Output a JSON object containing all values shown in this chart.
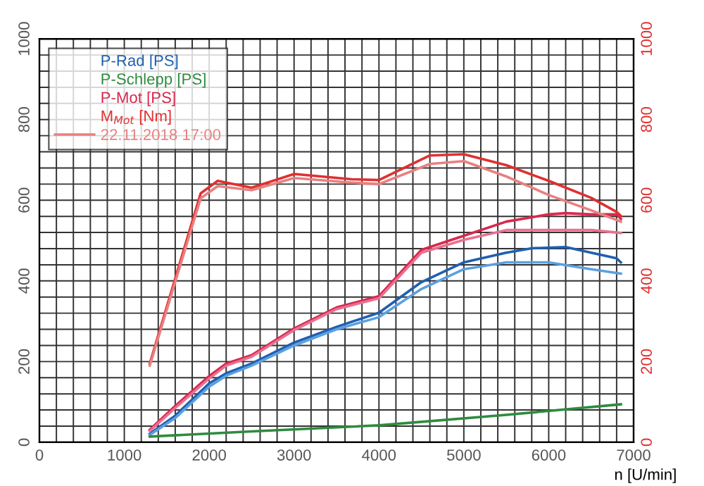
{
  "chart_data": {
    "type": "line",
    "xlabel": "n [U/min]",
    "legend": "top left",
    "grid": true,
    "xlim": [
      0,
      7000
    ],
    "ylim": [
      0,
      1000
    ],
    "y2lim": [
      0,
      1000
    ],
    "xticks": [
      0,
      {
        "value": 200,
        "label": null
      },
      {
        "value": 400,
        "label": null
      },
      {
        "value": 600,
        "label": null
      },
      {
        "value": 800,
        "label": null
      },
      1000,
      {
        "value": 1200,
        "label": null
      },
      {
        "value": 1400,
        "label": null
      },
      {
        "value": 1600,
        "label": null
      },
      {
        "value": 1800,
        "label": null
      },
      2000,
      {
        "value": 2200,
        "label": null
      },
      {
        "value": 2400,
        "label": null
      },
      {
        "value": 2600,
        "label": null
      },
      {
        "value": 2800,
        "label": null
      },
      3000,
      {
        "value": 3200,
        "label": null
      },
      {
        "value": 3400,
        "label": null
      },
      {
        "value": 3600,
        "label": null
      },
      {
        "value": 3800,
        "label": null
      },
      4000,
      {
        "value": 4200,
        "label": null
      },
      {
        "value": 4400,
        "label": null
      },
      {
        "value": 4600,
        "label": null
      },
      {
        "value": 4800,
        "label": null
      },
      5000,
      {
        "value": 5200,
        "label": null
      },
      {
        "value": 5400,
        "label": null
      },
      {
        "value": 5600,
        "label": null
      },
      {
        "value": 5800,
        "label": null
      },
      6000,
      {
        "value": 6200,
        "label": null
      },
      {
        "value": 6400,
        "label": null
      },
      {
        "value": 6600,
        "label": null
      },
      {
        "value": 6800,
        "label": null
      },
      7000
    ],
    "yticks": [
      0,
      {
        "value": 40,
        "label": null
      },
      {
        "value": 80,
        "label": null
      },
      {
        "value": 120,
        "label": null
      },
      {
        "value": 160,
        "label": null
      },
      200,
      {
        "value": 240,
        "label": null
      },
      {
        "value": 280,
        "label": null
      },
      {
        "value": 320,
        "label": null
      },
      {
        "value": 360,
        "label": null
      },
      400,
      {
        "value": 440,
        "label": null
      },
      {
        "value": 480,
        "label": null
      },
      {
        "value": 520,
        "label": null
      },
      {
        "value": 560,
        "label": null
      },
      600,
      {
        "value": 640,
        "label": null
      },
      {
        "value": 680,
        "label": null
      },
      {
        "value": 720,
        "label": null
      },
      {
        "value": 760,
        "label": null
      },
      800,
      {
        "value": 840,
        "label": null
      },
      {
        "value": 880,
        "label": null
      },
      {
        "value": 920,
        "label": null
      },
      {
        "value": 960,
        "label": null
      },
      1000
    ],
    "y2ticks": [
      0,
      200,
      400,
      600,
      800,
      1000
    ],
    "series": [
      {
        "name": "P-Rad [PS]",
        "color": "#1f5fb0",
        "axis": "y",
        "x": [
          1300,
          1600,
          2000,
          2200,
          2500,
          3000,
          3500,
          4000,
          4500,
          5000,
          5500,
          5800,
          6200,
          6500,
          6800,
          6850
        ],
        "values": [
          21,
          66,
          146,
          171,
          195,
          247,
          286,
          321,
          397,
          446,
          470,
          481,
          484,
          470,
          456,
          446
        ]
      },
      {
        "color": "#5aa0e0",
        "axis": "y",
        "x": [
          1300,
          1600,
          2000,
          2200,
          2500,
          3000,
          3500,
          4000,
          4500,
          5000,
          5500,
          6000,
          6500,
          6850
        ],
        "values": [
          18,
          60,
          138,
          165,
          190,
          240,
          280,
          310,
          380,
          429,
          446,
          446,
          429,
          418
        ]
      },
      {
        "name": "P-Schlepp [PS]",
        "color": "#2e8b3e",
        "axis": "y",
        "x": [
          1300,
          2500,
          4000,
          5500,
          6850
        ],
        "values": [
          14,
          27,
          42,
          68,
          94
        ]
      },
      {
        "name": "P-Mot [PS]",
        "color": "#d8284e",
        "axis": "y",
        "x": [
          1300,
          1600,
          2000,
          2200,
          2500,
          3000,
          3500,
          4000,
          4500,
          5000,
          5500,
          6000,
          6200,
          6500,
          6800,
          6850
        ],
        "values": [
          31,
          90,
          164,
          195,
          216,
          282,
          334,
          362,
          477,
          512,
          547,
          565,
          568,
          565,
          565,
          554
        ]
      },
      {
        "color": "#e87090",
        "axis": "y",
        "x": [
          1300,
          1600,
          2000,
          2200,
          2500,
          3000,
          3500,
          4000,
          4500,
          5000,
          5500,
          6000,
          6500,
          6850
        ],
        "values": [
          28,
          85,
          158,
          190,
          212,
          278,
          330,
          357,
          470,
          502,
          526,
          526,
          526,
          519
        ]
      },
      {
        "name": "M$_{Mot}$ [Nm]",
        "color": "#e03030",
        "axis": "y2",
        "x": [
          1300,
          1900,
          2100,
          2500,
          3000,
          3680,
          4000,
          4600,
          5000,
          5500,
          6000,
          6500,
          6800,
          6850
        ],
        "values": [
          195,
          617,
          648,
          631,
          665,
          652,
          650,
          711,
          714,
          687,
          648,
          606,
          571,
          561
        ]
      },
      {
        "name": "22.11.2018 17:00",
        "color": "#e88080",
        "axis": "y2",
        "x": [
          1300,
          1900,
          2100,
          2500,
          3000,
          3600,
          4000,
          4600,
          5000,
          5500,
          6000,
          6500,
          6850
        ],
        "values": [
          190,
          605,
          635,
          625,
          655,
          645,
          640,
          690,
          697,
          659,
          613,
          575,
          547
        ]
      }
    ]
  }
}
